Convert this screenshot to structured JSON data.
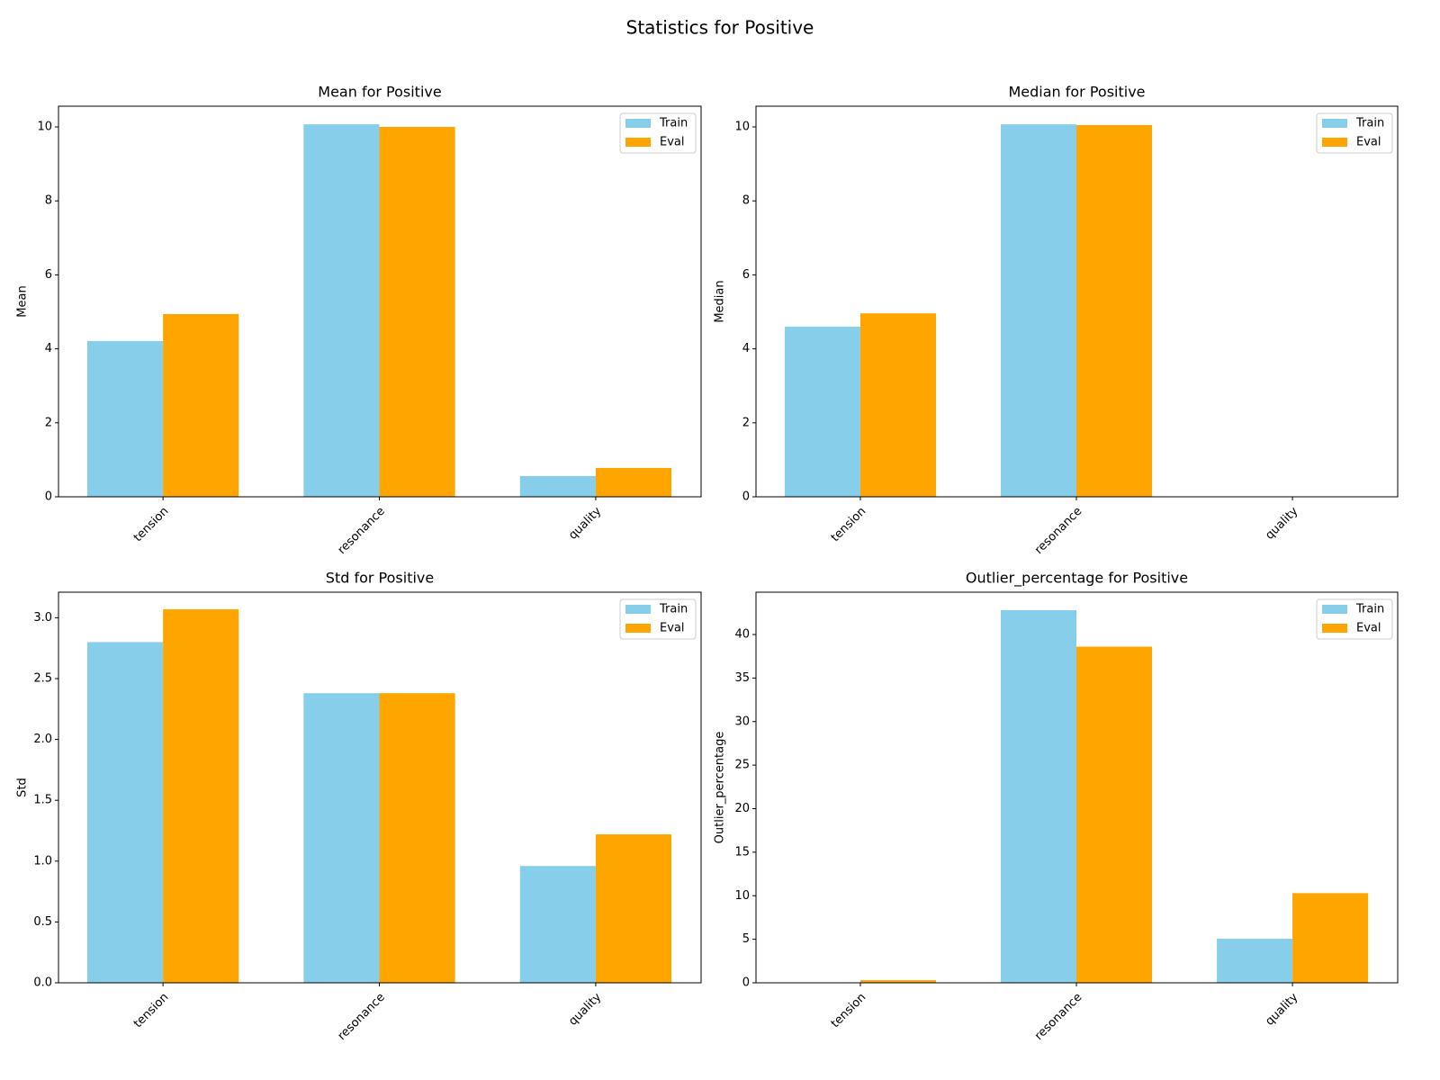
{
  "title": "Statistics for Positive",
  "chart_data": [
    {
      "type": "bar",
      "title": "Mean for Positive",
      "ylabel": "Mean",
      "categories": [
        "tension",
        "resonance",
        "quality"
      ],
      "series": [
        {
          "name": "Train",
          "color": "#87ceeb",
          "values": [
            4.21,
            10.07,
            0.56
          ]
        },
        {
          "name": "Eval",
          "color": "#ffa500",
          "values": [
            4.94,
            10.0,
            0.78
          ]
        }
      ],
      "ylim": [
        0,
        10.56
      ],
      "yticks": [
        0,
        2,
        4,
        6,
        8,
        10
      ],
      "legend": "upper right"
    },
    {
      "type": "bar",
      "title": "Median for Positive",
      "ylabel": "Median",
      "categories": [
        "tension",
        "resonance",
        "quality"
      ],
      "series": [
        {
          "name": "Train",
          "color": "#87ceeb",
          "values": [
            4.6,
            10.07,
            0
          ]
        },
        {
          "name": "Eval",
          "color": "#ffa500",
          "values": [
            4.96,
            10.05,
            0
          ]
        }
      ],
      "ylim": [
        0,
        10.56
      ],
      "yticks": [
        0,
        2,
        4,
        6,
        8,
        10
      ],
      "legend": "upper right"
    },
    {
      "type": "bar",
      "title": "Std for Positive",
      "ylabel": "Std",
      "categories": [
        "tension",
        "resonance",
        "quality"
      ],
      "series": [
        {
          "name": "Train",
          "color": "#87ceeb",
          "values": [
            2.8,
            2.38,
            0.96
          ]
        },
        {
          "name": "Eval",
          "color": "#ffa500",
          "values": [
            3.07,
            2.38,
            1.22
          ]
        }
      ],
      "ylim": [
        0,
        3.21
      ],
      "yticks": [
        {
          "value": 0,
          "label": "0.0"
        },
        0.5,
        {
          "value": 1,
          "label": "1.0"
        },
        1.5,
        {
          "value": 2,
          "label": "2.0"
        },
        2.5,
        {
          "value": 3,
          "label": "3.0"
        }
      ],
      "legend": "upper right"
    },
    {
      "type": "bar",
      "title": "Outlier_percentage for Positive",
      "ylabel": "Outlier_percentage",
      "categories": [
        "tension",
        "resonance",
        "quality"
      ],
      "series": [
        {
          "name": "Train",
          "color": "#87ceeb",
          "values": [
            0.05,
            42.8,
            5.06
          ]
        },
        {
          "name": "Eval",
          "color": "#ffa500",
          "values": [
            0.3,
            38.6,
            10.3
          ]
        }
      ],
      "ylim": [
        0,
        44.86
      ],
      "yticks": [
        0,
        5,
        10,
        15,
        20,
        25,
        30,
        35,
        40
      ],
      "legend": "upper right"
    }
  ]
}
